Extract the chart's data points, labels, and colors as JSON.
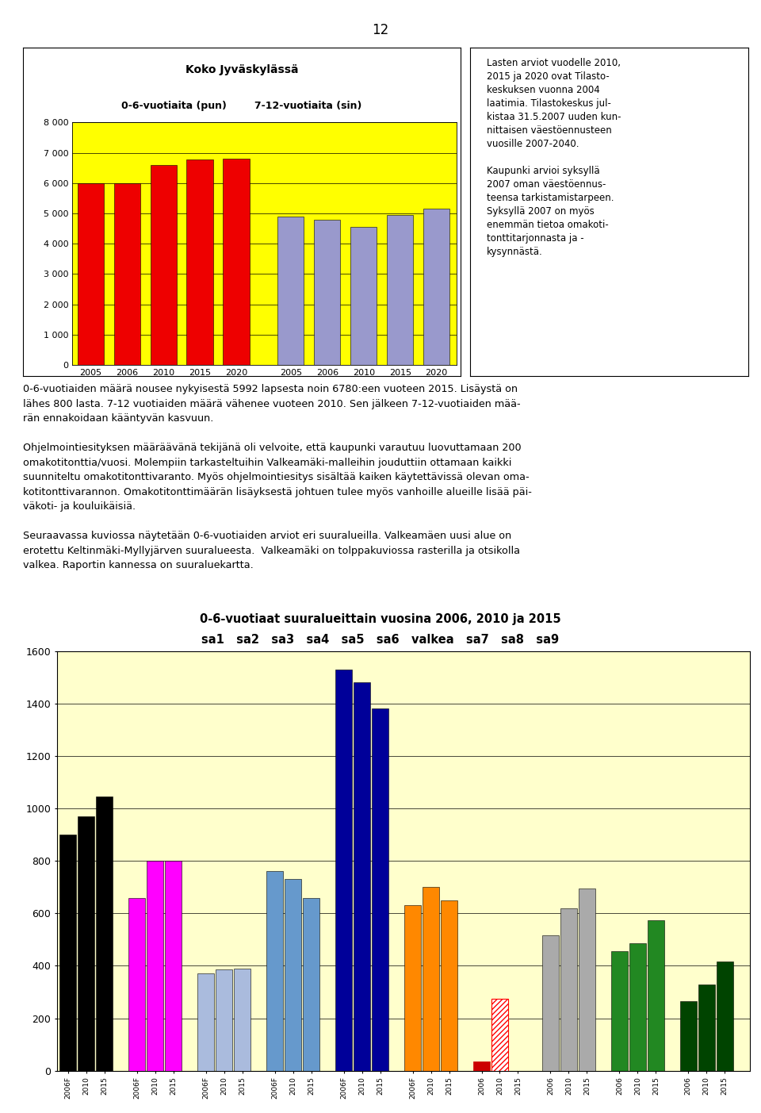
{
  "page_number": "12",
  "top_chart": {
    "title_line1": "Koko Jyväskylässä",
    "title_line2": "0-6-vuotiaita (pun)        7-12-vuotiaita (sin)",
    "outer_bg": "#FFFFFF",
    "plot_bg": "#FFFF00",
    "ylim": [
      0,
      8000
    ],
    "yticks": [
      0,
      1000,
      2000,
      3000,
      4000,
      5000,
      6000,
      7000,
      8000
    ],
    "red_vals": [
      6000,
      6000,
      6600,
      6780,
      6800
    ],
    "red_labels": [
      "2005",
      "2006",
      "2010",
      "2015",
      "2020"
    ],
    "red_color": "#EE0000",
    "blue_vals": [
      4900,
      4800,
      4550,
      4950,
      5150
    ],
    "blue_labels": [
      "2005",
      "2006",
      "2010",
      "2015",
      "2020"
    ],
    "blue_color": "#9999CC"
  },
  "right_text": "Lasten arviot vuodelle 2010,\n2015 ja 2020 ovat Tilasto-\nkeskuksen vuonna 2004\nlaatimia. Tilastokeskus jul-\nkistaa 31.5.2007 uuden kun-\nnittaisen väestöennusteen\nvuosille 2007-2040.\n\nKaupunki arvioi syksyllä\n2007 oman väestöennus-\nteensa tarkistamistarpeen.\nSyksyllä 2007 on myös\nenemmän tietoa omakoti-\ntonttitarjonnasta ja -\nkysynnästä.",
  "body_text": "0-6-vuotiaiden määrä nousee nykyisestä 5992 lapsesta noin 6780:een vuoteen 2015. Lisäystä on\nlähes 800 lasta. 7-12 vuotiaiden määrä vähenee vuoteen 2010. Sen jälkeen 7-12-vuotiaiden mää-\nrän ennakoidaan kääntyvän kasvuun.\n\nOhjelmointiesityksen määräävänä tekijänä oli velvoite, että kaupunki varautuu luovuttamaan 200\nomakotitonttia/vuosi. Molempiin tarkasteltuihin Valkeamäki-malleihin jouduttiin ottamaan kaikki\nsuunniteltu omakotitonttivaranto. Myös ohjelmointiesitys sisältää kaiken käytettävissä olevan oma-\nkotitonttivarannon. Omakotitonttimäärän lisäyksestä johtuen tulee myös vanhoille alueille lisää päi-\nväkoti- ja kouluikäisiä.\n\nSeuraavassa kuviossa näytetään 0-6-vuotiaiden arviot eri suuralueilla. Valkeamäen uusi alue on\nerotettu Keltinmäki-Myllyjärven suuralueesta.  Valkeamäki on tolppakuviossa rasterilla ja otsikolla\nvalkea. Raportin kannessa on suuraluekartta.",
  "bot_chart": {
    "title_line1": "0-6-vuotiaat suuralueittain vuosina 2006, 2010 ja 2015",
    "title_line2": "sa1   sa2   sa3   sa4   sa5   sa6   valkea   sa7   sa8   sa9",
    "plot_bg": "#FFFFCC",
    "ylim": [
      0,
      1600
    ],
    "yticks": [
      0,
      200,
      400,
      600,
      800,
      1000,
      1200,
      1400,
      1600
    ],
    "groups": [
      {
        "name": "sa1",
        "vals": [
          900,
          970,
          1045
        ],
        "color": "#000000",
        "labels": [
          "2006F",
          "2010",
          "2015"
        ],
        "hatch": [
          false,
          false,
          false
        ]
      },
      {
        "name": "sa2",
        "vals": [
          660,
          800,
          800
        ],
        "color": "#FF00FF",
        "labels": [
          "2006F",
          "2010",
          "2015"
        ],
        "hatch": [
          false,
          false,
          false
        ]
      },
      {
        "name": "sa3",
        "vals": [
          370,
          385,
          390
        ],
        "color": "#AABBDD",
        "labels": [
          "2006F",
          "2010",
          "2015"
        ],
        "hatch": [
          false,
          false,
          false
        ]
      },
      {
        "name": "sa4",
        "vals": [
          760,
          730,
          660
        ],
        "color": "#6699CC",
        "labels": [
          "2006F",
          "2010",
          "2015"
        ],
        "hatch": [
          false,
          false,
          false
        ]
      },
      {
        "name": "sa5",
        "vals": [
          1530,
          1480,
          1380
        ],
        "color": "#000099",
        "labels": [
          "2006F",
          "2010",
          "2015"
        ],
        "hatch": [
          false,
          false,
          false
        ]
      },
      {
        "name": "sa6",
        "vals": [
          630,
          700,
          650
        ],
        "color": "#FF8800",
        "labels": [
          "2006F",
          "2010",
          "2015"
        ],
        "hatch": [
          false,
          false,
          false
        ]
      },
      {
        "name": "valkea",
        "vals": [
          35,
          275,
          0
        ],
        "color": "#CC0000",
        "labels": [
          "2006",
          "2010",
          "2015"
        ],
        "hatch": [
          false,
          true,
          false
        ],
        "hatch_color": "#FF8888"
      },
      {
        "name": "sa7",
        "vals": [
          515,
          620,
          695
        ],
        "color": "#AAAAAA",
        "labels": [
          "2006",
          "2010",
          "2015"
        ],
        "hatch": [
          false,
          false,
          false
        ]
      },
      {
        "name": "sa8",
        "vals": [
          455,
          485,
          575
        ],
        "color": "#228822",
        "labels": [
          "2006",
          "2010",
          "2015"
        ],
        "hatch": [
          false,
          false,
          false
        ]
      },
      {
        "name": "sa9",
        "vals": [
          265,
          330,
          415
        ],
        "color": "#004400",
        "labels": [
          "2006",
          "2010",
          "2015"
        ],
        "hatch": [
          false,
          false,
          false
        ]
      }
    ]
  }
}
